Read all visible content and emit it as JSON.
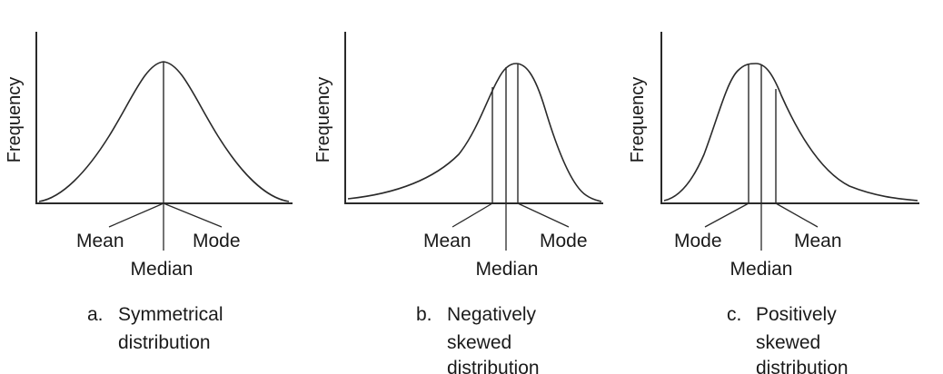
{
  "figure": {
    "panels": [
      {
        "id": "a",
        "y_axis_label": "Frequency",
        "labels": {
          "left": "Mean",
          "right": "Mode",
          "bottom": "Median"
        },
        "caption_letter": "a.",
        "caption_lines": [
          "Symmetrical",
          "distribution"
        ]
      },
      {
        "id": "b",
        "y_axis_label": "Frequency",
        "labels": {
          "left": "Mean",
          "right": "Mode",
          "bottom": "Median"
        },
        "caption_letter": "b.",
        "caption_lines": [
          "Negatively",
          "skewed",
          "distribution"
        ]
      },
      {
        "id": "c",
        "y_axis_label": "Frequency",
        "labels": {
          "left": "Mode",
          "right": "Mean",
          "bottom": "Median"
        },
        "caption_letter": "c.",
        "caption_lines": [
          "Positively",
          "skewed",
          "distribution"
        ]
      }
    ]
  }
}
